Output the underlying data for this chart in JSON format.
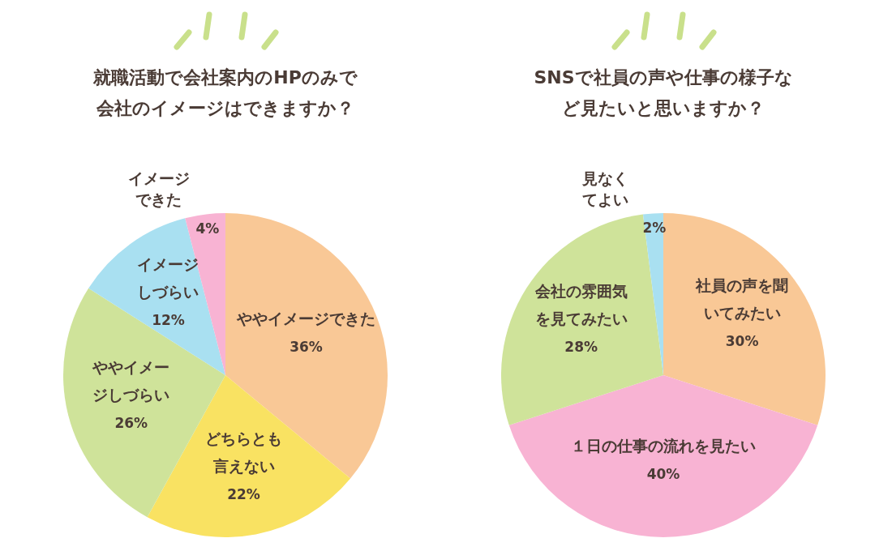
{
  "chart_data": [
    {
      "type": "pie",
      "title": "就職活動で会社案内のHPのみで会社のイメージはできますか？",
      "categories": [
        "ややイメージできた",
        "どちらとも言えない",
        "ややイメージしづらい",
        "イメージしづらい",
        "イメージできた"
      ],
      "values": [
        36,
        22,
        26,
        12,
        4
      ],
      "colors": [
        "#f9c896",
        "#f9e262",
        "#cfe39a",
        "#a9e0f1",
        "#f8b3d3"
      ],
      "value_labels": [
        "36%",
        "22%",
        "26%",
        "12%",
        "4%"
      ]
    },
    {
      "type": "pie",
      "title": "SNSで社員の声や仕事の様子など見たいと思いますか？",
      "categories": [
        "社員の声を聞いてみたい",
        "１日の仕事の流れを見たい",
        "会社の雰囲気を見てみたい",
        "見なくてよい"
      ],
      "values": [
        30,
        40,
        28,
        2
      ],
      "colors": [
        "#f9c896",
        "#f8b3d3",
        "#cfe39a",
        "#a9e0f1"
      ],
      "value_labels": [
        "30%",
        "40%",
        "28%",
        "2%"
      ]
    }
  ]
}
